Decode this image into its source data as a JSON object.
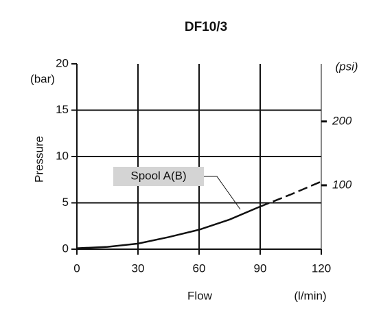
{
  "chart_data": {
    "type": "line",
    "title": "DF10/3",
    "xlabel": "Flow",
    "xunit": "(l/min)",
    "ylabel": "Pressure",
    "yunit": "(bar)",
    "y2unit": "(psi)",
    "annotation": "Spool A(B)",
    "xlim": [
      0,
      120
    ],
    "xticks": [
      0,
      30,
      60,
      90,
      120
    ],
    "ylim": [
      0,
      20
    ],
    "yticks": [
      0,
      5,
      10,
      15,
      20
    ],
    "y2lim": [
      0,
      290.08
    ],
    "y2ticks": [
      100,
      200
    ],
    "grid": true,
    "series": [
      {
        "color": "#111111",
        "style": "solid",
        "x": [
          0,
          15,
          30,
          45,
          60,
          75,
          90
        ],
        "values": [
          0.1,
          0.25,
          0.6,
          1.3,
          2.1,
          3.2,
          4.6
        ]
      },
      {
        "color": "#111111",
        "style": "dashed",
        "x": [
          90,
          105,
          120
        ],
        "values": [
          4.6,
          5.9,
          7.3
        ]
      }
    ]
  }
}
